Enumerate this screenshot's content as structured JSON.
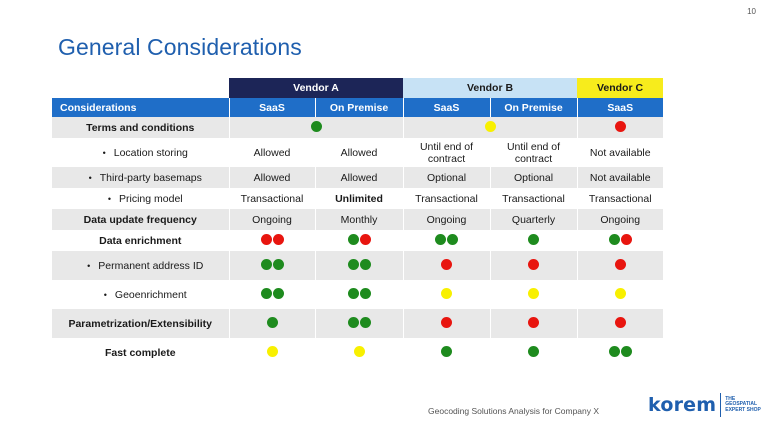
{
  "page": {
    "number": "10",
    "title": "General Considerations"
  },
  "vendors": [
    "Vendor A",
    "Vendor B",
    "Vendor C"
  ],
  "header": {
    "considerations_label": "Considerations",
    "columns": [
      "SaaS",
      "On Premise",
      "SaaS",
      "On Premise",
      "SaaS"
    ]
  },
  "rows": [
    {
      "label": "Terms and conditions",
      "sub": false,
      "merged": [
        {
          "span": 2,
          "dots": [
            "green"
          ]
        },
        {
          "span": 2,
          "dots": [
            "yellow"
          ]
        },
        {
          "span": 1,
          "dots": [
            "red"
          ]
        }
      ]
    },
    {
      "label": "Location storing",
      "sub": true,
      "cells": [
        {
          "text": "Allowed"
        },
        {
          "text": "Allowed"
        },
        {
          "text": "Until end of contract"
        },
        {
          "text": "Until end of contract"
        },
        {
          "text": "Not available"
        }
      ]
    },
    {
      "label": "Third-party basemaps",
      "sub": true,
      "cells": [
        {
          "text": "Allowed"
        },
        {
          "text": "Allowed"
        },
        {
          "text": "Optional"
        },
        {
          "text": "Optional"
        },
        {
          "text": "Not available"
        }
      ]
    },
    {
      "label": "Pricing model",
      "sub": true,
      "cells": [
        {
          "text": "Transactional"
        },
        {
          "text": "Unlimited",
          "bold": true
        },
        {
          "text": "Transactional"
        },
        {
          "text": "Transactional"
        },
        {
          "text": "Transactional"
        }
      ]
    },
    {
      "label": "Data update frequency",
      "sub": false,
      "cells": [
        {
          "text": "Ongoing"
        },
        {
          "text": "Monthly"
        },
        {
          "text": "Ongoing"
        },
        {
          "text": "Quarterly"
        },
        {
          "text": "Ongoing"
        }
      ]
    },
    {
      "label": "Data enrichment",
      "sub": false,
      "cells": [
        {
          "dots": [
            "red",
            "red"
          ]
        },
        {
          "dots": [
            "green",
            "red"
          ]
        },
        {
          "dots": [
            "green",
            "green"
          ]
        },
        {
          "dots": [
            "green"
          ]
        },
        {
          "dots": [
            "green",
            "red"
          ]
        }
      ]
    },
    {
      "label": "Permanent address ID",
      "sub": true,
      "cells": [
        {
          "dots": [
            "green",
            "green"
          ]
        },
        {
          "dots": [
            "green",
            "green"
          ]
        },
        {
          "dots": [
            "red"
          ]
        },
        {
          "dots": [
            "red"
          ]
        },
        {
          "dots": [
            "red"
          ]
        }
      ]
    },
    {
      "label": "Geoenrichment",
      "sub": true,
      "cells": [
        {
          "dots": [
            "green",
            "green"
          ]
        },
        {
          "dots": [
            "green",
            "green"
          ]
        },
        {
          "dots": [
            "yellow"
          ]
        },
        {
          "dots": [
            "yellow"
          ]
        },
        {
          "dots": [
            "yellow"
          ]
        }
      ]
    },
    {
      "label": "Parametrization/Extensibility",
      "sub": false,
      "cells": [
        {
          "dots": [
            "green"
          ]
        },
        {
          "dots": [
            "green",
            "green"
          ]
        },
        {
          "dots": [
            "red"
          ]
        },
        {
          "dots": [
            "red"
          ]
        },
        {
          "dots": [
            "red"
          ]
        }
      ]
    },
    {
      "label": "Fast complete",
      "sub": false,
      "cells": [
        {
          "dots": [
            "yellow"
          ]
        },
        {
          "dots": [
            "yellow"
          ]
        },
        {
          "dots": [
            "green"
          ]
        },
        {
          "dots": [
            "green"
          ]
        },
        {
          "dots": [
            "green",
            "green"
          ]
        }
      ]
    }
  ],
  "footer": {
    "text": "Geocoding Solutions Analysis for Company X",
    "logo_word": "korem",
    "logo_tagline": [
      "THE",
      "GEOSPATIAL",
      "EXPERT SHOP"
    ]
  },
  "colors": {
    "title": "#1f5fae",
    "header_blue": "#1f6ec8",
    "vendor_a": "#1c2557",
    "vendor_b": "#c7e2f5",
    "vendor_c": "#f7ec1c",
    "green": "#1e8b1e",
    "red": "#e8150f",
    "yellow": "#f8f000"
  }
}
